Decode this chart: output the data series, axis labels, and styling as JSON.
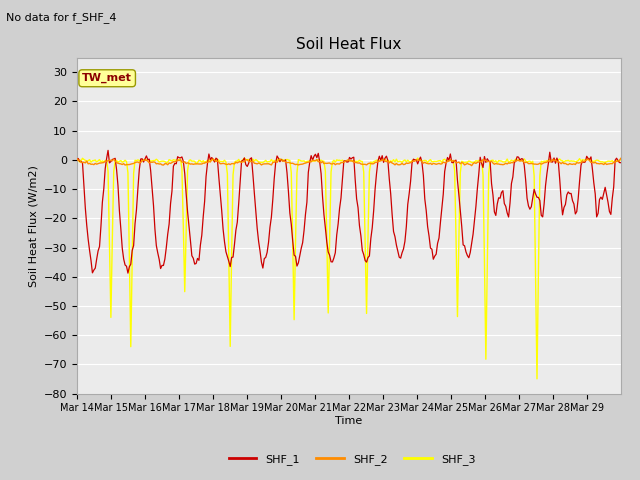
{
  "title": "Soil Heat Flux",
  "subtitle": "No data for f_SHF_4",
  "ylabel": "Soil Heat Flux (W/m2)",
  "xlabel": "Time",
  "ylim": [
    -80,
    35
  ],
  "yticks": [
    -80,
    -70,
    -60,
    -50,
    -40,
    -30,
    -20,
    -10,
    0,
    10,
    20,
    30
  ],
  "fig_bg_color": "#d0d0d0",
  "plot_bg": "#ebebeb",
  "grid_color": "#ffffff",
  "shf1_color": "#cc0000",
  "shf2_color": "#ff8c00",
  "shf3_color": "#ffff00",
  "tw_met_box_color": "#ffff99",
  "tw_met_text_color": "#8b0000",
  "tw_met_border_color": "#999900",
  "legend_shf1": "SHF_1",
  "legend_shf2": "SHF_2",
  "legend_shf3": "SHF_3",
  "x_tick_labels": [
    "Mar 14",
    "Mar 15",
    "Mar 16",
    "Mar 17",
    "Mar 18",
    "Mar 19",
    "Mar 20",
    "Mar 21",
    "Mar 22",
    "Mar 23",
    "Mar 24",
    "Mar 25",
    "Mar 26",
    "Mar 27",
    "Mar 28",
    "Mar 29"
  ],
  "n_days": 16
}
